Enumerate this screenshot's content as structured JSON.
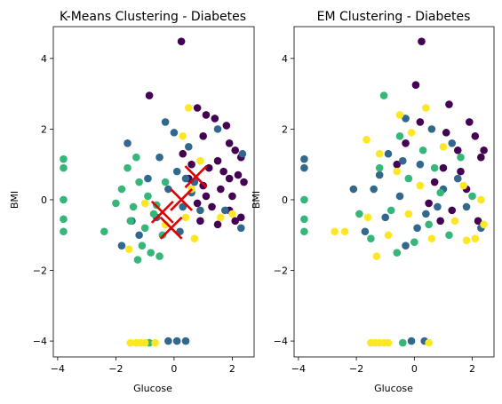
{
  "chart_data": [
    {
      "type": "scatter",
      "title": "K-Means Clustering - Diabetes",
      "xlabel": "Glucose",
      "ylabel": "BMI",
      "xlim": [
        -4.15,
        2.75
      ],
      "ylim": [
        -4.45,
        4.9
      ],
      "xticks": [
        -4,
        -2,
        0,
        2
      ],
      "yticks": [
        -4,
        -2,
        0,
        2,
        4
      ],
      "colors": [
        "#440154",
        "#31688e",
        "#35b779",
        "#fde725"
      ],
      "centroids": [
        [
          0.75,
          0.65
        ],
        [
          0.25,
          0.0
        ],
        [
          -0.4,
          -0.35
        ],
        [
          -0.1,
          -0.8
        ]
      ],
      "points": [
        [
          0.25,
          4.48,
          0
        ],
        [
          -0.85,
          2.95,
          0
        ],
        [
          0.8,
          2.6,
          0
        ],
        [
          1.1,
          2.4,
          0
        ],
        [
          1.4,
          2.3,
          0
        ],
        [
          1.8,
          2.1,
          0
        ],
        [
          1.0,
          1.8,
          0
        ],
        [
          1.9,
          1.6,
          0
        ],
        [
          2.1,
          1.4,
          0
        ],
        [
          2.3,
          1.2,
          0
        ],
        [
          1.5,
          1.1,
          0
        ],
        [
          0.6,
          1.0,
          0
        ],
        [
          1.2,
          0.9,
          0
        ],
        [
          1.7,
          0.8,
          0
        ],
        [
          2.2,
          0.7,
          0
        ],
        [
          2.4,
          0.5,
          0
        ],
        [
          1.0,
          0.4,
          0
        ],
        [
          1.6,
          0.3,
          0
        ],
        [
          2.0,
          0.1,
          0
        ],
        [
          0.8,
          -0.1,
          0
        ],
        [
          1.3,
          -0.2,
          0
        ],
        [
          1.9,
          -0.3,
          0
        ],
        [
          2.3,
          -0.5,
          0
        ],
        [
          0.9,
          -0.6,
          0
        ],
        [
          1.5,
          -0.7,
          0
        ],
        [
          0.5,
          0.6,
          0
        ],
        [
          0.3,
          1.3,
          0
        ],
        [
          1.9,
          0.6,
          0
        ],
        [
          2.1,
          -0.6,
          0
        ],
        [
          1.1,
          0.1,
          0
        ],
        [
          -0.3,
          2.2,
          1
        ],
        [
          0.0,
          1.9,
          1
        ],
        [
          1.5,
          2.0,
          1
        ],
        [
          0.5,
          1.5,
          1
        ],
        [
          -1.6,
          1.6,
          1
        ],
        [
          -0.5,
          1.2,
          1
        ],
        [
          0.1,
          0.8,
          1
        ],
        [
          0.7,
          0.5,
          1
        ],
        [
          -0.2,
          0.3,
          1
        ],
        [
          0.3,
          -0.2,
          1
        ],
        [
          0.9,
          -0.3,
          1
        ],
        [
          -1.8,
          -1.3,
          1
        ],
        [
          -0.6,
          -0.5,
          1
        ],
        [
          0.2,
          -0.9,
          1
        ],
        [
          -1.2,
          -1.0,
          1
        ],
        [
          0.4,
          0.6,
          1
        ],
        [
          2.3,
          -0.8,
          1
        ],
        [
          -0.2,
          -4.0,
          1
        ],
        [
          0.1,
          -4.0,
          1
        ],
        [
          0.4,
          -4.0,
          1
        ],
        [
          2.35,
          1.3,
          1
        ],
        [
          1.75,
          -0.3,
          1
        ],
        [
          -0.9,
          0.6,
          1
        ],
        [
          0.6,
          0.2,
          1
        ],
        [
          -1.45,
          -0.6,
          1
        ],
        [
          -3.8,
          1.15,
          2
        ],
        [
          -3.8,
          0.9,
          2
        ],
        [
          -3.8,
          0.0,
          2
        ],
        [
          -3.8,
          -0.55,
          2
        ],
        [
          -3.8,
          -0.9,
          2
        ],
        [
          -1.6,
          0.9,
          2
        ],
        [
          -1.2,
          0.5,
          2
        ],
        [
          -0.9,
          0.1,
          2
        ],
        [
          -1.4,
          -0.2,
          2
        ],
        [
          -0.7,
          -0.4,
          2
        ],
        [
          -1.0,
          -0.8,
          2
        ],
        [
          -0.4,
          -1.0,
          2
        ],
        [
          -1.1,
          -1.3,
          2
        ],
        [
          -0.5,
          -1.6,
          2
        ],
        [
          -1.5,
          -0.6,
          2
        ],
        [
          -2.4,
          -0.9,
          2
        ],
        [
          -0.3,
          0.5,
          2
        ],
        [
          -1.8,
          0.3,
          2
        ],
        [
          -0.8,
          -1.5,
          2
        ],
        [
          -1.3,
          1.2,
          2
        ],
        [
          -0.6,
          -0.15,
          2
        ],
        [
          -2.0,
          -0.1,
          2
        ],
        [
          -1.25,
          -1.7,
          2
        ],
        [
          -0.85,
          -4.05,
          2
        ],
        [
          0.9,
          1.1,
          3
        ],
        [
          0.6,
          0.3,
          3
        ],
        [
          0.4,
          -0.5,
          3
        ],
        [
          -0.3,
          -0.7,
          3
        ],
        [
          0.5,
          2.6,
          3
        ],
        [
          -1.0,
          -0.1,
          3
        ],
        [
          1.6,
          -0.5,
          3
        ],
        [
          0.7,
          -1.1,
          3
        ],
        [
          2.0,
          -0.4,
          3
        ],
        [
          -1.55,
          -1.4,
          3
        ],
        [
          -1.5,
          -4.05,
          3
        ],
        [
          -1.3,
          -4.05,
          3
        ],
        [
          -1.15,
          -4.05,
          3
        ],
        [
          -1.0,
          -4.05,
          3
        ],
        [
          -0.65,
          -4.05,
          3
        ],
        [
          0.3,
          1.8,
          3
        ]
      ]
    },
    {
      "type": "scatter",
      "title": "EM Clustering - Diabetes",
      "xlabel": "Glucose",
      "ylabel": "BMI",
      "xlim": [
        -4.15,
        2.75
      ],
      "ylim": [
        -4.45,
        4.9
      ],
      "xticks": [
        -4,
        -2,
        0,
        2
      ],
      "yticks": [
        -4,
        -2,
        0,
        2,
        4
      ],
      "colors": [
        "#440154",
        "#31688e",
        "#35b779",
        "#fde725"
      ],
      "points": [
        [
          0.25,
          4.48,
          0
        ],
        [
          0.05,
          3.25,
          0
        ],
        [
          1.2,
          2.7,
          0
        ],
        [
          1.9,
          2.2,
          0
        ],
        [
          2.1,
          1.8,
          0
        ],
        [
          1.5,
          1.4,
          0
        ],
        [
          2.3,
          1.2,
          0
        ],
        [
          1.0,
          0.9,
          0
        ],
        [
          0.7,
          0.5,
          0
        ],
        [
          1.8,
          0.3,
          0
        ],
        [
          2.4,
          1.4,
          0
        ],
        [
          0.2,
          2.2,
          0
        ],
        [
          -0.3,
          1.6,
          0
        ],
        [
          1.3,
          -0.3,
          0
        ],
        [
          2.2,
          -0.6,
          0
        ],
        [
          0.5,
          -0.1,
          0
        ],
        [
          1.1,
          1.9,
          0
        ],
        [
          -0.6,
          1.0,
          0
        ],
        [
          1.6,
          0.8,
          0
        ],
        [
          0.9,
          -0.6,
          0
        ],
        [
          -3.8,
          1.15,
          1
        ],
        [
          -3.8,
          0.9,
          1
        ],
        [
          -0.3,
          2.3,
          1
        ],
        [
          0.6,
          2.0,
          1
        ],
        [
          1.3,
          1.6,
          1
        ],
        [
          -0.9,
          1.3,
          1
        ],
        [
          0.2,
          1.0,
          1
        ],
        [
          1.5,
          0.6,
          1
        ],
        [
          -1.4,
          0.3,
          1
        ],
        [
          -0.5,
          0.1,
          1
        ],
        [
          0.8,
          -0.2,
          1
        ],
        [
          -1.0,
          -0.5,
          1
        ],
        [
          0.1,
          -0.8,
          1
        ],
        [
          -1.7,
          -0.9,
          1
        ],
        [
          -0.3,
          -1.3,
          1
        ],
        [
          2.3,
          -0.8,
          1
        ],
        [
          1.0,
          0.3,
          1
        ],
        [
          -2.1,
          0.3,
          1
        ],
        [
          -0.1,
          -4.0,
          1
        ],
        [
          0.35,
          -4.0,
          1
        ],
        [
          -0.4,
          1.1,
          1
        ],
        [
          0.4,
          -0.4,
          1
        ],
        [
          1.8,
          -0.2,
          1
        ],
        [
          -1.2,
          0.7,
          1
        ],
        [
          -3.8,
          0.0,
          2
        ],
        [
          -3.8,
          -0.55,
          2
        ],
        [
          -3.8,
          -0.9,
          2
        ],
        [
          -1.05,
          2.95,
          2
        ],
        [
          -0.5,
          1.8,
          2
        ],
        [
          0.3,
          1.4,
          2
        ],
        [
          -1.2,
          0.9,
          2
        ],
        [
          -0.2,
          0.6,
          2
        ],
        [
          0.9,
          0.2,
          2
        ],
        [
          -0.8,
          -0.3,
          2
        ],
        [
          0.5,
          -0.7,
          2
        ],
        [
          -1.5,
          -1.1,
          2
        ],
        [
          -0.6,
          -1.5,
          2
        ],
        [
          1.2,
          -1.0,
          2
        ],
        [
          2.0,
          0.1,
          2
        ],
        [
          -1.9,
          -0.4,
          2
        ],
        [
          0.0,
          -1.2,
          2
        ],
        [
          0.7,
          0.9,
          2
        ],
        [
          1.6,
          1.2,
          2
        ],
        [
          -0.4,
          -4.05,
          2
        ],
        [
          -1.65,
          1.7,
          3
        ],
        [
          -1.2,
          1.3,
          3
        ],
        [
          -0.6,
          0.8,
          3
        ],
        [
          0.2,
          0.4,
          3
        ],
        [
          1.0,
          1.5,
          3
        ],
        [
          1.7,
          0.4,
          3
        ],
        [
          2.3,
          0.0,
          3
        ],
        [
          -2.4,
          -0.9,
          3
        ],
        [
          -1.6,
          -0.5,
          3
        ],
        [
          -0.9,
          -1.0,
          3
        ],
        [
          -0.2,
          -0.4,
          3
        ],
        [
          0.6,
          -1.1,
          3
        ],
        [
          1.4,
          -0.6,
          3
        ],
        [
          2.1,
          -1.1,
          3
        ],
        [
          -1.3,
          -1.6,
          3
        ],
        [
          -0.5,
          2.4,
          3
        ],
        [
          0.4,
          2.6,
          3
        ],
        [
          1.8,
          -1.15,
          3
        ],
        [
          2.4,
          -0.7,
          3
        ],
        [
          -1.5,
          -4.05,
          3
        ],
        [
          -1.35,
          -4.05,
          3
        ],
        [
          -1.2,
          -4.05,
          3
        ],
        [
          -1.05,
          -4.05,
          3
        ],
        [
          -0.9,
          -4.05,
          3
        ],
        [
          0.5,
          -4.05,
          3
        ],
        [
          -2.75,
          -0.9,
          3
        ],
        [
          -0.1,
          1.9,
          3
        ]
      ]
    }
  ]
}
